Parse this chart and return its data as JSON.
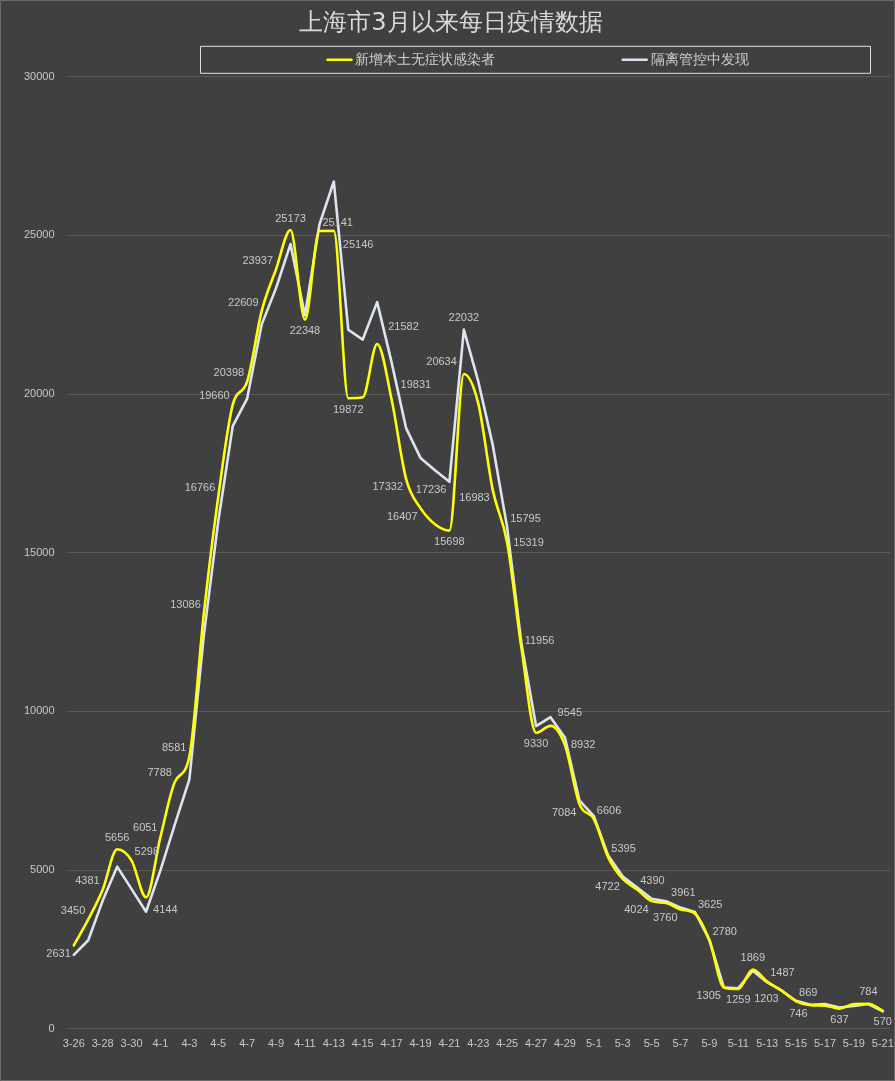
{
  "chart_data": {
    "type": "line",
    "title": "上海市3月以来每日疫情数据",
    "categories": [
      "3-26",
      null,
      "3-28",
      null,
      "3-30",
      null,
      "4-1",
      null,
      "4-3",
      null,
      "4-5",
      null,
      "4-7",
      null,
      "4-9",
      null,
      "4-11",
      null,
      "4-13",
      null,
      "4-15",
      null,
      "4-17",
      null,
      "4-19",
      null,
      "4-21",
      null,
      "4-23",
      null,
      "4-25",
      null,
      "4-27",
      null,
      "4-29",
      null,
      "5-1",
      null,
      "5-3",
      null,
      "5-5",
      null,
      "5-7",
      null,
      "5-9",
      null,
      "5-11",
      null,
      "5-13",
      null,
      "5-15",
      null,
      "5-17",
      null,
      "5-19",
      null,
      "5-21"
    ],
    "series": [
      {
        "name": "新增本土无症状感染者",
        "color": "#ffff00",
        "values": [
          2631,
          3450,
          4381,
          5656,
          5298,
          4144,
          6051,
          7788,
          8581,
          13086,
          16766,
          19660,
          20398,
          22609,
          23937,
          25173,
          22348,
          25141,
          25146,
          19872,
          19900,
          21582,
          19831,
          17332,
          16407,
          15900,
          15698,
          20634,
          19700,
          16983,
          15319,
          11956,
          9330,
          9545,
          8932,
          7084,
          6606,
          5395,
          4722,
          4390,
          4024,
          3961,
          3760,
          3625,
          2780,
          1305,
          1259,
          1869,
          1487,
          1203,
          869,
          746,
          730,
          637,
          780,
          784,
          570
        ],
        "value_labels": [
          "2631",
          "3450",
          "4381",
          "5656",
          "5298",
          "4144",
          "6051",
          "7788",
          "8581",
          "13086",
          "16766",
          "19660",
          "20398",
          "22609",
          "23937",
          "25173",
          "22348",
          "25141",
          "25146",
          "19872",
          null,
          "21582",
          "19831",
          "17332",
          "16407",
          null,
          "15698",
          "20634",
          null,
          "16983",
          "15319",
          "11956",
          "9330",
          "9545",
          "8932",
          "7084",
          "6606",
          "5395",
          "4722",
          "4390",
          "4024",
          "3961",
          "3760",
          "3625",
          "2780",
          "1305",
          "1259",
          "1869",
          "1487",
          "1203",
          "869",
          "746",
          null,
          "637",
          null,
          "784",
          "570"
        ]
      },
      {
        "name": "隔离管控中发现",
        "color": "#dde4f0",
        "values": [
          2330,
          2790,
          4040,
          5110,
          4400,
          3690,
          5000,
          6450,
          7860,
          12400,
          16000,
          18990,
          19860,
          22190,
          23340,
          24730,
          22480,
          25340,
          26700,
          22030,
          21720,
          22900,
          21000,
          18930,
          17990,
          17600,
          17236,
          22032,
          20400,
          18400,
          15795,
          12100,
          9540,
          9820,
          9170,
          7200,
          6700,
          5450,
          4800,
          4450,
          4100,
          4020,
          3820,
          3680,
          2800,
          1300,
          1280,
          1830,
          1460,
          1200,
          880,
          760,
          780,
          670,
          720,
          780,
          550
        ],
        "value_labels": [
          null,
          null,
          null,
          null,
          null,
          null,
          null,
          null,
          null,
          null,
          null,
          null,
          null,
          null,
          null,
          null,
          null,
          null,
          null,
          null,
          null,
          null,
          null,
          null,
          null,
          null,
          "17236",
          "22032",
          null,
          null,
          "15795",
          null,
          null,
          null,
          null,
          null,
          null,
          null,
          null,
          null,
          null,
          null,
          null,
          null,
          null,
          null,
          null,
          null,
          null,
          null,
          null,
          null,
          null,
          null,
          null,
          null,
          null
        ]
      }
    ],
    "ylim": [
      0,
      30000
    ],
    "yticks": [
      0,
      5000,
      10000,
      15000,
      20000,
      25000,
      30000
    ],
    "grid": "y",
    "legend": "top"
  }
}
